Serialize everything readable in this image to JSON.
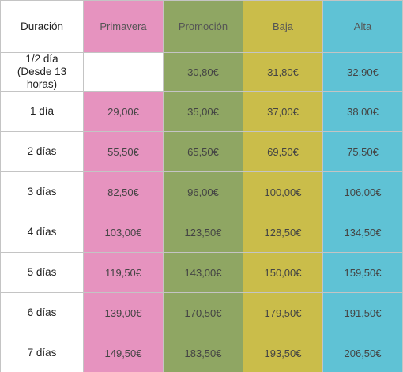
{
  "colors": {
    "primavera": "#e693bf",
    "promocion": "#8fa663",
    "baja": "#cabd4a",
    "alta": "#5fc2d5"
  },
  "header": {
    "duration": "Duración",
    "primavera": "Primavera",
    "promocion": "Promoción",
    "baja": "Baja",
    "alta": "Alta"
  },
  "half_day": {
    "label_line1": "1/2 día",
    "label_line2": "(Desde 13 horas)",
    "primavera": "",
    "promocion": "30,80€",
    "baja": "31,80€",
    "alta": "32,90€"
  },
  "rows": [
    {
      "label": "1 día",
      "primavera": "29,00€",
      "promocion": "35,00€",
      "baja": "37,00€",
      "alta": "38,00€"
    },
    {
      "label": "2 días",
      "primavera": "55,50€",
      "promocion": "65,50€",
      "baja": "69,50€",
      "alta": "75,50€"
    },
    {
      "label": "3 días",
      "primavera": "82,50€",
      "promocion": "96,00€",
      "baja": "100,00€",
      "alta": "106,00€"
    },
    {
      "label": "4 días",
      "primavera": "103,00€",
      "promocion": "123,50€",
      "baja": "128,50€",
      "alta": "134,50€"
    },
    {
      "label": "5 días",
      "primavera": "119,50€",
      "promocion": "143,00€",
      "baja": "150,00€",
      "alta": "159,50€"
    },
    {
      "label": "6 días",
      "primavera": "139,00€",
      "promocion": "170,50€",
      "baja": "179,50€",
      "alta": "191,50€"
    },
    {
      "label": "7 días",
      "primavera": "149,50€",
      "promocion": "183,50€",
      "baja": "193,50€",
      "alta": "206,50€"
    }
  ]
}
